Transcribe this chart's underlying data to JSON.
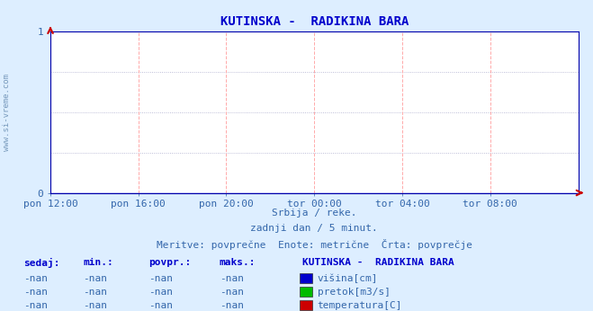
{
  "title_display": "KUTINSKA -  RADIKINA BARA",
  "bg_color": "#ddeeff",
  "plot_bg_color": "#ffffff",
  "title_color": "#0000cc",
  "tick_color": "#3366aa",
  "grid_color_h": "#aaaacc",
  "grid_color_v": "#ffaaaa",
  "ylim": [
    0,
    1
  ],
  "xtick_labels": [
    "pon 12:00",
    "pon 16:00",
    "pon 20:00",
    "tor 00:00",
    "tor 04:00",
    "tor 08:00"
  ],
  "xtick_positions": [
    0.0,
    0.1667,
    0.3333,
    0.5,
    0.6667,
    0.8333
  ],
  "watermark": "www.si-vreme.com",
  "subtitle1": "Srbija / reke.",
  "subtitle2": "zadnji dan / 5 minut.",
  "subtitle3": "Meritve: povprečne  Enote: metrične  Črta: povprečje",
  "legend_title": "KUTINSKA -  RADIKINA BARA",
  "legend_items": [
    {
      "label": "višina[cm]",
      "color": "#0000cc"
    },
    {
      "label": "pretok[m3/s]",
      "color": "#00bb00"
    },
    {
      "label": "temperatura[C]",
      "color": "#cc0000"
    }
  ],
  "table_headers": [
    "sedaj:",
    "min.:",
    "povpr.:",
    "maks.:"
  ],
  "table_rows": [
    [
      "-nan",
      "-nan",
      "-nan",
      "-nan"
    ],
    [
      "-nan",
      "-nan",
      "-nan",
      "-nan"
    ],
    [
      "-nan",
      "-nan",
      "-nan",
      "-nan"
    ]
  ],
  "arrow_color": "#cc0000",
  "line_color": "#0000cc",
  "font_family": "monospace",
  "spine_color": "#0000aa"
}
